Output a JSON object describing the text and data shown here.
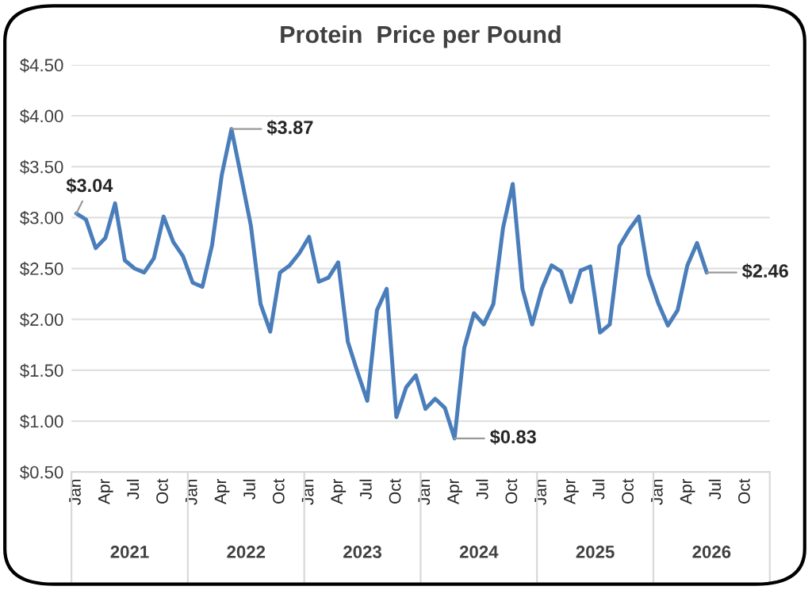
{
  "chart_data": {
    "type": "line",
    "title": "Protein  Price per Pound",
    "categories": [
      "Jan",
      null,
      null,
      "Apr",
      null,
      null,
      "Jul",
      null,
      null,
      "Oct",
      null,
      null,
      "Jan",
      null,
      null,
      "Apr",
      null,
      null,
      "Jul",
      null,
      null,
      "Oct",
      null,
      null,
      "Jan",
      null,
      null,
      "Apr",
      null,
      null,
      "Jul",
      null,
      null,
      "Oct",
      null,
      null,
      "Jan",
      null,
      null,
      "Apr",
      null,
      null,
      "Jul",
      null,
      null,
      "Oct",
      null,
      null,
      "Jan",
      null,
      null,
      "Apr",
      null,
      null,
      "Jul",
      null,
      null,
      "Oct",
      null,
      null,
      "Jan",
      null,
      null,
      "Apr",
      null,
      null,
      "Jul",
      null,
      null,
      "Oct",
      null,
      null
    ],
    "series": [
      {
        "color": "#4a7ebb",
        "values": [
          3.04,
          2.98,
          2.7,
          2.8,
          3.14,
          2.58,
          2.5,
          2.46,
          2.6,
          3.01,
          2.76,
          2.62,
          2.36,
          2.32,
          2.73,
          3.42,
          3.87,
          3.4,
          2.92,
          2.15,
          1.88,
          2.46,
          2.53,
          2.65,
          2.81,
          2.37,
          2.41,
          2.56,
          1.78,
          1.48,
          1.2,
          2.09,
          2.3,
          1.04,
          1.33,
          1.45,
          1.12,
          1.22,
          1.13,
          0.83,
          1.72,
          2.06,
          1.95,
          2.15,
          2.9,
          3.33,
          2.3,
          1.95,
          2.3,
          2.53,
          2.47,
          2.17,
          2.48,
          2.52,
          1.87,
          1.95,
          2.72,
          2.88,
          3.01,
          2.44,
          2.16,
          1.94,
          2.09,
          2.53,
          2.75,
          2.46,
          null,
          null,
          null,
          null,
          null,
          null
        ],
        "value_labels": [
          "$3.04",
          null,
          null,
          null,
          null,
          null,
          null,
          null,
          null,
          null,
          null,
          null,
          null,
          null,
          null,
          null,
          "$3.87",
          null,
          null,
          null,
          null,
          null,
          null,
          null,
          null,
          null,
          null,
          null,
          null,
          null,
          null,
          null,
          null,
          null,
          null,
          null,
          null,
          null,
          null,
          "$0.83",
          null,
          null,
          null,
          null,
          null,
          null,
          null,
          null,
          null,
          null,
          null,
          null,
          null,
          null,
          null,
          null,
          null,
          null,
          null,
          null,
          null,
          null,
          null,
          null,
          null,
          "$2.46",
          null,
          null,
          null,
          null,
          null,
          null
        ]
      }
    ],
    "annotations": [
      "2021",
      "2022",
      "2023",
      "2024",
      "2025",
      "2026"
    ],
    "ylim": [
      0.5,
      4.5
    ],
    "yticks": [
      {
        "value": 0.5,
        "label": "$0.50"
      },
      {
        "value": 1.0,
        "label": "$1.00"
      },
      {
        "value": 1.5,
        "label": "$1.50"
      },
      {
        "value": 2.0,
        "label": "$2.00"
      },
      {
        "value": 2.5,
        "label": "$2.50"
      },
      {
        "value": 3.0,
        "label": "$3.00"
      },
      {
        "value": 3.5,
        "label": "$3.50"
      },
      {
        "value": 4.0,
        "label": "$4.00"
      },
      {
        "value": 4.5,
        "label": "$4.50"
      }
    ],
    "grid": "y",
    "legend": false
  }
}
